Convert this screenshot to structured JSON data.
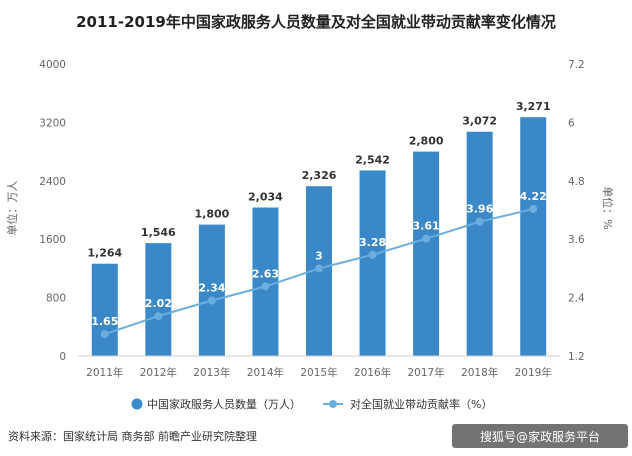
{
  "chart_data": {
    "type": "bar",
    "title": "2011-2019年中国家政服务人员数量及对全国就业带动贡献率变化情况",
    "categories": [
      "2011年",
      "2012年",
      "2013年",
      "2014年",
      "2015年",
      "2016年",
      "2017年",
      "2018年",
      "2019年"
    ],
    "series": [
      {
        "name": "中国家政服务人员数量（万人）",
        "type": "bar",
        "axis": "left",
        "color": "#3b88c8",
        "values": [
          1264,
          1546,
          1800,
          2034,
          2326,
          2542,
          2800,
          3072,
          3271
        ],
        "labels": [
          "1,264",
          "1,546",
          "1,800",
          "2,034",
          "2,326",
          "2,542",
          "2,800",
          "3,072",
          "3,271"
        ]
      },
      {
        "name": "对全国就业带动贡献率（%）",
        "type": "line",
        "axis": "right",
        "color": "#6aaee0",
        "values": [
          1.65,
          2.02,
          2.34,
          2.63,
          3,
          3.28,
          3.61,
          3.96,
          4.22
        ],
        "labels": [
          "1.65",
          "2.02",
          "2.34",
          "2.63",
          "3",
          "3.28",
          "3.61",
          "3.96",
          "4.22"
        ]
      }
    ],
    "yAxisLeft": {
      "label": "单位：万人",
      "min": 0,
      "max": 4000,
      "ticks": [
        "0",
        "800",
        "1600",
        "2400",
        "3200",
        "4000"
      ]
    },
    "yAxisRight": {
      "label": "单位：%",
      "min": 1.2,
      "max": 7.2,
      "ticks": [
        "1.2",
        "2.4",
        "3.6",
        "4.8",
        "6",
        "7.2"
      ]
    },
    "grid": false,
    "legend": "bottom"
  },
  "source": "资料来源：国家统计局 商务部 前瞻产业研究院整理",
  "watermark": "搜狐号@家政服务平台"
}
